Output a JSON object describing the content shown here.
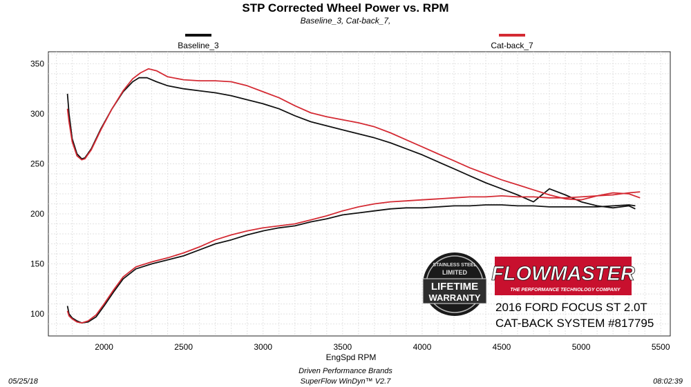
{
  "chart_data": {
    "type": "line",
    "title": "STP Corrected Wheel Power vs. RPM",
    "subtitle": "Baseline_3, Cat-back_7,",
    "xlabel": "EngSpd  RPM",
    "ylabel": "",
    "xlim": [
      1650,
      5560
    ],
    "ylim": [
      78,
      362
    ],
    "x_ticks": [
      2000,
      2500,
      3000,
      3500,
      4000,
      4500,
      5000,
      5500
    ],
    "y_ticks": [
      100,
      150,
      200,
      250,
      300,
      350
    ],
    "grid": true,
    "legend_position": "top",
    "series": [
      {
        "name": "Baseline_3",
        "color": "#111111",
        "curves": [
          {
            "x": [
              1770,
              1780,
              1800,
              1830,
              1860,
              1880,
              1920,
              1980,
              2050,
              2120,
              2180,
              2220,
              2270,
              2330,
              2400,
              2500,
              2600,
              2700,
              2800,
              2900,
              3000,
              3100,
              3200,
              3300,
              3400,
              3500,
              3600,
              3700,
              3800,
              3900,
              4000,
              4100,
              4200,
              4300,
              4400,
              4500,
              4600,
              4700,
              4800,
              4900,
              5000,
              5100,
              5200,
              5300,
              5340
            ],
            "y": [
              320,
              300,
              275,
              260,
              255,
              256,
              265,
              285,
              305,
              322,
              332,
              336,
              336,
              332,
              328,
              325,
              323,
              321,
              318,
              314,
              310,
              305,
              298,
              292,
              288,
              284,
              280,
              276,
              271,
              265,
              259,
              252,
              245,
              238,
              231,
              225,
              219,
              212,
              225,
              219,
              212,
              208,
              206,
              208,
              205
            ]
          },
          {
            "x": [
              1770,
              1780,
              1800,
              1830,
              1860,
              1900,
              1950,
              2000,
              2060,
              2120,
              2200,
              2300,
              2400,
              2500,
              2600,
              2700,
              2800,
              2900,
              3000,
              3100,
              3200,
              3300,
              3400,
              3500,
              3600,
              3700,
              3800,
              3900,
              4000,
              4100,
              4200,
              4300,
              4400,
              4500,
              4600,
              4700,
              4800,
              4900,
              5000,
              5100,
              5200,
              5300,
              5340
            ],
            "y": [
              108,
              100,
              96,
              93,
              91,
              92,
              97,
              108,
              122,
              135,
              145,
              150,
              154,
              158,
              164,
              170,
              174,
              179,
              183,
              186,
              188,
              192,
              195,
              199,
              201,
              203,
              205,
              206,
              206,
              207,
              208,
              208,
              209,
              209,
              208,
              208,
              207,
              207,
              207,
              207,
              208,
              209,
              208
            ]
          }
        ]
      },
      {
        "name": "Cat-back_7",
        "color": "#d42a33",
        "curves": [
          {
            "x": [
              1770,
              1780,
              1800,
              1830,
              1860,
              1880,
              1920,
              1980,
              2050,
              2120,
              2180,
              2230,
              2280,
              2330,
              2400,
              2500,
              2600,
              2700,
              2800,
              2900,
              3000,
              3100,
              3200,
              3300,
              3400,
              3500,
              3600,
              3700,
              3800,
              3900,
              4000,
              4100,
              4200,
              4300,
              4400,
              4500,
              4600,
              4700,
              4800,
              4900,
              5000,
              5100,
              5200,
              5300,
              5370
            ],
            "y": [
              305,
              292,
              272,
              258,
              254,
              255,
              264,
              284,
              305,
              323,
              335,
              341,
              345,
              343,
              337,
              334,
              333,
              333,
              332,
              328,
              322,
              316,
              308,
              301,
              297,
              294,
              291,
              287,
              281,
              274,
              267,
              260,
              253,
              246,
              240,
              234,
              229,
              224,
              219,
              215,
              214,
              218,
              221,
              220,
              216
            ]
          },
          {
            "x": [
              1770,
              1780,
              1800,
              1830,
              1860,
              1900,
              1950,
              2000,
              2060,
              2120,
              2200,
              2300,
              2400,
              2500,
              2600,
              2700,
              2800,
              2900,
              3000,
              3100,
              3200,
              3300,
              3400,
              3500,
              3600,
              3700,
              3800,
              3900,
              4000,
              4100,
              4200,
              4300,
              4400,
              4500,
              4600,
              4700,
              4800,
              4900,
              5000,
              5100,
              5200,
              5300,
              5370
            ],
            "y": [
              103,
              98,
              95,
              92,
              91,
              93,
              99,
              110,
              124,
              137,
              147,
              152,
              156,
              161,
              167,
              174,
              179,
              183,
              186,
              188,
              190,
              194,
              198,
              203,
              207,
              210,
              212,
              213,
              214,
              215,
              216,
              217,
              217,
              218,
              217,
              217,
              216,
              216,
              217,
              218,
              219,
              221,
              222
            ]
          }
        ]
      }
    ]
  },
  "footer": {
    "date": "05/25/18",
    "company": "Driven Performance Brands",
    "software": "SuperFlow WinDyn™  V2.7",
    "time": "08:02:39"
  },
  "overlay": {
    "badge": {
      "line1": "STAINLESS STEEL",
      "line2": "LIMITED",
      "line3": "LIFETIME",
      "line4": "WARRANTY"
    },
    "logo": {
      "name": "FLOWMASTER",
      "tagline": "THE PERFORMANCE TECHNOLOGY COMPANY",
      "color": "#c8102e"
    },
    "vehicle_line1": "2016 FORD FOCUS ST 2.0T",
    "vehicle_line2": "CAT-BACK SYSTEM #817795"
  }
}
